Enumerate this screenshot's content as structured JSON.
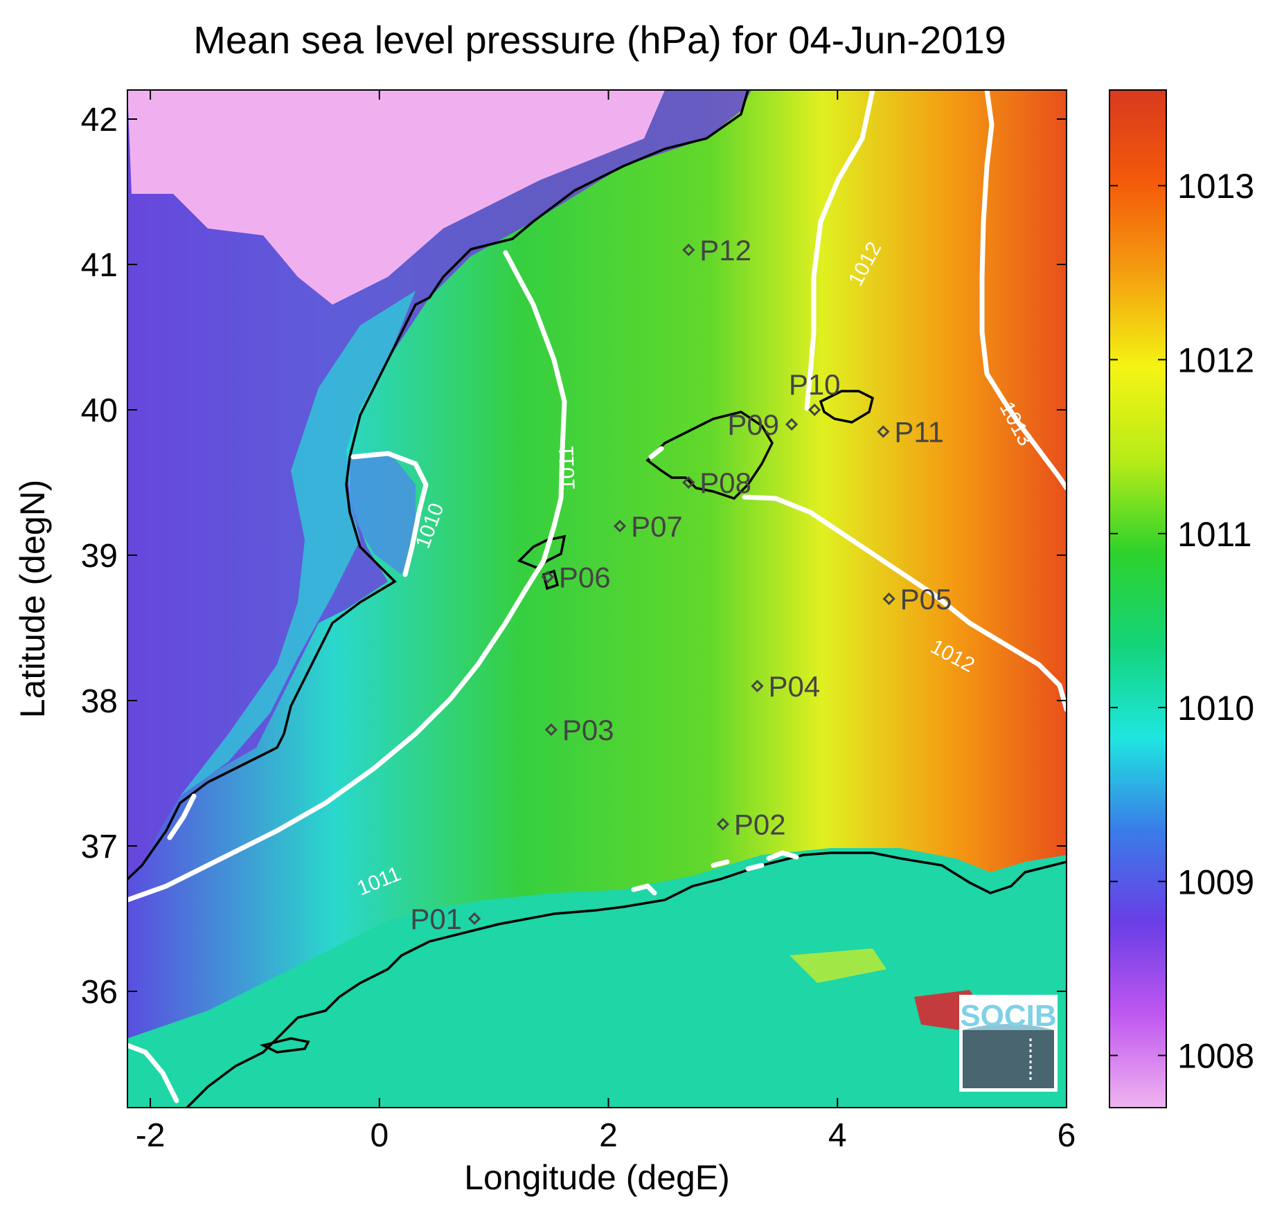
{
  "title": "Mean sea level pressure (hPa) for 04-Jun-2019",
  "axes": {
    "xlabel": "Longitude (degE)",
    "ylabel": "Latitude (degN)",
    "xlim": [
      -2.2,
      6.0
    ],
    "ylim": [
      35.2,
      42.2
    ],
    "xticks": [
      {
        "v": -2,
        "label": "-2"
      },
      {
        "v": 0,
        "label": "0"
      },
      {
        "v": 2,
        "label": "2"
      },
      {
        "v": 4,
        "label": "4"
      },
      {
        "v": 6,
        "label": "6"
      }
    ],
    "yticks": [
      {
        "v": 36,
        "label": "36"
      },
      {
        "v": 37,
        "label": "37"
      },
      {
        "v": 38,
        "label": "38"
      },
      {
        "v": 39,
        "label": "39"
      },
      {
        "v": 40,
        "label": "40"
      },
      {
        "v": 41,
        "label": "41"
      },
      {
        "v": 42,
        "label": "42"
      }
    ]
  },
  "colorbar": {
    "range": [
      1007.7,
      1013.55
    ],
    "ticks": [
      {
        "v": 1008,
        "label": "1008"
      },
      {
        "v": 1009,
        "label": "1009"
      },
      {
        "v": 1010,
        "label": "1010"
      },
      {
        "v": 1011,
        "label": "1011"
      },
      {
        "v": 1012,
        "label": "1012"
      },
      {
        "v": 1013,
        "label": "1013"
      }
    ],
    "colors": [
      "#f0b4f0",
      "#c058f0",
      "#6a3ee6",
      "#3a7ce8",
      "#1ee6e0",
      "#14d47a",
      "#2ed22c",
      "#b8ec18",
      "#f4f414",
      "#f4a010",
      "#f45a0a",
      "#d83a1e"
    ]
  },
  "points": [
    {
      "label": "P01",
      "lon": 0.83,
      "lat": 36.5,
      "anchor": "left"
    },
    {
      "label": "P02",
      "lon": 3.0,
      "lat": 37.15,
      "anchor": "right"
    },
    {
      "label": "P03",
      "lon": 1.5,
      "lat": 37.8,
      "anchor": "right"
    },
    {
      "label": "P04",
      "lon": 3.3,
      "lat": 38.1,
      "anchor": "right"
    },
    {
      "label": "P05",
      "lon": 4.45,
      "lat": 38.7,
      "anchor": "right"
    },
    {
      "label": "P06",
      "lon": 1.47,
      "lat": 38.85,
      "anchor": "right"
    },
    {
      "label": "P07",
      "lon": 2.1,
      "lat": 39.2,
      "anchor": "right"
    },
    {
      "label": "P08",
      "lon": 2.7,
      "lat": 39.5,
      "anchor": "right"
    },
    {
      "label": "P09",
      "lon": 3.6,
      "lat": 39.9,
      "anchor": "left"
    },
    {
      "label": "P10",
      "lon": 3.8,
      "lat": 40.0,
      "anchor": "above"
    },
    {
      "label": "P11",
      "lon": 4.4,
      "lat": 39.85,
      "anchor": "right"
    },
    {
      "label": "P12",
      "lon": 2.7,
      "lat": 41.1,
      "anchor": "right"
    }
  ],
  "contours": [
    {
      "level": "1010",
      "label": "1010",
      "lon": 0.45,
      "lat": 39.2,
      "rotate": -70
    },
    {
      "level": "1011",
      "label": "1011",
      "lon": 1.65,
      "lat": 39.6,
      "rotate": -92
    },
    {
      "level": "1011",
      "label": "1011",
      "lon": 0.0,
      "lat": 36.75,
      "rotate": -22
    },
    {
      "level": "1012",
      "label": "1012",
      "lon": 4.25,
      "lat": 41.0,
      "rotate": -62
    },
    {
      "level": "1012",
      "label": "1012",
      "lon": 5.0,
      "lat": 38.3,
      "rotate": 28
    },
    {
      "level": "1013",
      "label": "1013",
      "lon": 5.55,
      "lat": 39.9,
      "rotate": 62
    }
  ],
  "logo": {
    "text": "SOCIB"
  }
}
